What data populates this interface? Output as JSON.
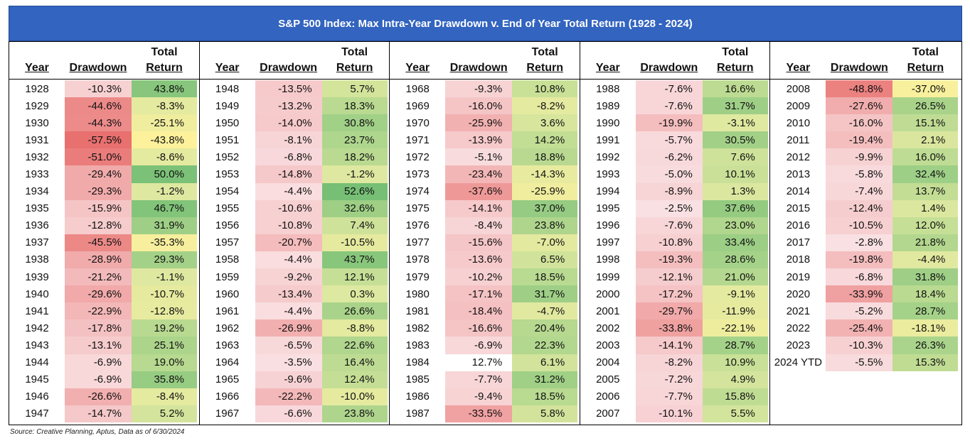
{
  "title": "S&P 500 Index: Max Intra-Year Drawdown v. End of Year Total Return (1928 - 2024)",
  "source": "Source: Creative Planning, Aptus, Data as of 6/30/2024",
  "headers": {
    "year": "Year",
    "drawdown": "Drawdown",
    "total_return": "Total Return"
  },
  "colors": {
    "title_bg": "#3264c0",
    "red_strong": "#e8706e",
    "white": "#ffffff",
    "yellow": "#fdf19c",
    "green_strong": "#76bf75"
  },
  "chart_data": {
    "type": "table",
    "columns": [
      "Year",
      "Drawdown",
      "Total Return"
    ],
    "sections": [
      [
        [
          "1928",
          "-10.3%",
          "43.8%"
        ],
        [
          "1929",
          "-44.6%",
          "-8.3%"
        ],
        [
          "1930",
          "-44.3%",
          "-25.1%"
        ],
        [
          "1931",
          "-57.5%",
          "-43.8%"
        ],
        [
          "1932",
          "-51.0%",
          "-8.6%"
        ],
        [
          "1933",
          "-29.4%",
          "50.0%"
        ],
        [
          "1934",
          "-29.3%",
          "-1.2%"
        ],
        [
          "1935",
          "-15.9%",
          "46.7%"
        ],
        [
          "1936",
          "-12.8%",
          "31.9%"
        ],
        [
          "1937",
          "-45.5%",
          "-35.3%"
        ],
        [
          "1938",
          "-28.9%",
          "29.3%"
        ],
        [
          "1939",
          "-21.2%",
          "-1.1%"
        ],
        [
          "1940",
          "-29.6%",
          "-10.7%"
        ],
        [
          "1941",
          "-22.9%",
          "-12.8%"
        ],
        [
          "1942",
          "-17.8%",
          "19.2%"
        ],
        [
          "1943",
          "-13.1%",
          "25.1%"
        ],
        [
          "1944",
          "-6.9%",
          "19.0%"
        ],
        [
          "1945",
          "-6.9%",
          "35.8%"
        ],
        [
          "1946",
          "-26.6%",
          "-8.4%"
        ],
        [
          "1947",
          "-14.7%",
          "5.2%"
        ]
      ],
      [
        [
          "1948",
          "-13.5%",
          "5.7%"
        ],
        [
          "1949",
          "-13.2%",
          "18.3%"
        ],
        [
          "1950",
          "-14.0%",
          "30.8%"
        ],
        [
          "1951",
          "-8.1%",
          "23.7%"
        ],
        [
          "1952",
          "-6.8%",
          "18.2%"
        ],
        [
          "1953",
          "-14.8%",
          "-1.2%"
        ],
        [
          "1954",
          "-4.4%",
          "52.6%"
        ],
        [
          "1955",
          "-10.6%",
          "32.6%"
        ],
        [
          "1956",
          "-10.8%",
          "7.4%"
        ],
        [
          "1957",
          "-20.7%",
          "-10.5%"
        ],
        [
          "1958",
          "-4.4%",
          "43.7%"
        ],
        [
          "1959",
          "-9.2%",
          "12.1%"
        ],
        [
          "1960",
          "-13.4%",
          "0.3%"
        ],
        [
          "1961",
          "-4.4%",
          "26.6%"
        ],
        [
          "1962",
          "-26.9%",
          "-8.8%"
        ],
        [
          "1963",
          "-6.5%",
          "22.6%"
        ],
        [
          "1964",
          "-3.5%",
          "16.4%"
        ],
        [
          "1965",
          "-9.6%",
          "12.4%"
        ],
        [
          "1966",
          "-22.2%",
          "-10.0%"
        ],
        [
          "1967",
          "-6.6%",
          "23.8%"
        ]
      ],
      [
        [
          "1968",
          "-9.3%",
          "10.8%"
        ],
        [
          "1969",
          "-16.0%",
          "-8.2%"
        ],
        [
          "1970",
          "-25.9%",
          "3.6%"
        ],
        [
          "1971",
          "-13.9%",
          "14.2%"
        ],
        [
          "1972",
          "-5.1%",
          "18.8%"
        ],
        [
          "1973",
          "-23.4%",
          "-14.3%"
        ],
        [
          "1974",
          "-37.6%",
          "-25.9%"
        ],
        [
          "1975",
          "-14.1%",
          "37.0%"
        ],
        [
          "1976",
          "-8.4%",
          "23.8%"
        ],
        [
          "1977",
          "-15.6%",
          "-7.0%"
        ],
        [
          "1978",
          "-13.6%",
          "6.5%"
        ],
        [
          "1979",
          "-10.2%",
          "18.5%"
        ],
        [
          "1980",
          "-17.1%",
          "31.7%"
        ],
        [
          "1981",
          "-18.4%",
          "-4.7%"
        ],
        [
          "1982",
          "-16.6%",
          "20.4%"
        ],
        [
          "1983",
          "-6.9%",
          "22.3%"
        ],
        [
          "1984",
          "12.7%",
          "6.1%"
        ],
        [
          "1985",
          "-7.7%",
          "31.2%"
        ],
        [
          "1986",
          "-9.4%",
          "18.5%"
        ],
        [
          "1987",
          "-33.5%",
          "5.8%"
        ]
      ],
      [
        [
          "1988",
          "-7.6%",
          "16.6%"
        ],
        [
          "1989",
          "-7.6%",
          "31.7%"
        ],
        [
          "1990",
          "-19.9%",
          "-3.1%"
        ],
        [
          "1991",
          "-5.7%",
          "30.5%"
        ],
        [
          "1992",
          "-6.2%",
          "7.6%"
        ],
        [
          "1993",
          "-5.0%",
          "10.1%"
        ],
        [
          "1994",
          "-8.9%",
          "1.3%"
        ],
        [
          "1995",
          "-2.5%",
          "37.6%"
        ],
        [
          "1996",
          "-7.6%",
          "23.0%"
        ],
        [
          "1997",
          "-10.8%",
          "33.4%"
        ],
        [
          "1998",
          "-19.3%",
          "28.6%"
        ],
        [
          "1999",
          "-12.1%",
          "21.0%"
        ],
        [
          "2000",
          "-17.2%",
          "-9.1%"
        ],
        [
          "2001",
          "-29.7%",
          "-11.9%"
        ],
        [
          "2002",
          "-33.8%",
          "-22.1%"
        ],
        [
          "2003",
          "-14.1%",
          "28.7%"
        ],
        [
          "2004",
          "-8.2%",
          "10.9%"
        ],
        [
          "2005",
          "-7.2%",
          "4.9%"
        ],
        [
          "2006",
          "-7.7%",
          "15.8%"
        ],
        [
          "2007",
          "-10.1%",
          "5.5%"
        ]
      ],
      [
        [
          "2008",
          "-48.8%",
          "-37.0%"
        ],
        [
          "2009",
          "-27.6%",
          "26.5%"
        ],
        [
          "2010",
          "-16.0%",
          "15.1%"
        ],
        [
          "2011",
          "-19.4%",
          "2.1%"
        ],
        [
          "2012",
          "-9.9%",
          "16.0%"
        ],
        [
          "2013",
          "-5.8%",
          "32.4%"
        ],
        [
          "2014",
          "-7.4%",
          "13.7%"
        ],
        [
          "2015",
          "-12.4%",
          "1.4%"
        ],
        [
          "2016",
          "-10.5%",
          "12.0%"
        ],
        [
          "2017",
          "-2.8%",
          "21.8%"
        ],
        [
          "2018",
          "-19.8%",
          "-4.4%"
        ],
        [
          "2019",
          "-6.8%",
          "31.8%"
        ],
        [
          "2020",
          "-33.9%",
          "18.4%"
        ],
        [
          "2021",
          "-5.2%",
          "28.7%"
        ],
        [
          "2022",
          "-25.4%",
          "-18.1%"
        ],
        [
          "2023",
          "-10.3%",
          "26.3%"
        ],
        [
          "2024 YTD",
          "-5.5%",
          "15.3%"
        ]
      ]
    ]
  }
}
